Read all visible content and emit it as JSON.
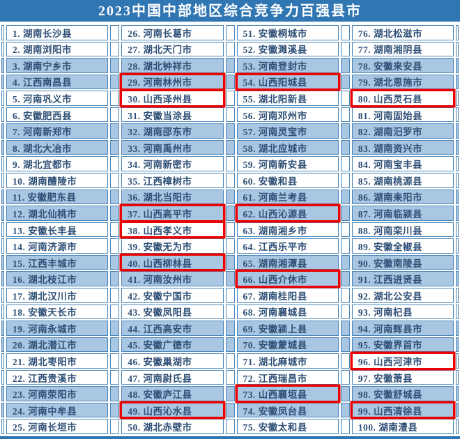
{
  "title": "2023中国中部地区综合竞争力百强县市",
  "colors": {
    "header_bg": "#2f76b3",
    "row_alt": "#a9c6e3",
    "cell_border": "#4a86b8",
    "text": "#2e4f76",
    "highlight_red": "#ea0000"
  },
  "rank_separator": ". ",
  "highlighted_ranks": [
    29,
    30,
    37,
    38,
    40,
    49,
    54,
    62,
    66,
    73,
    80,
    96,
    99
  ],
  "columns": [
    {
      "entries": [
        {
          "rank": 1,
          "name": "湖南长沙县"
        },
        {
          "rank": 2,
          "name": "湖南浏阳市"
        },
        {
          "rank": 3,
          "name": "湖南宁乡市"
        },
        {
          "rank": 4,
          "name": "江西南昌县"
        },
        {
          "rank": 5,
          "name": "河南巩义市"
        },
        {
          "rank": 6,
          "name": "安徽肥西县"
        },
        {
          "rank": 7,
          "name": "河南新郑市"
        },
        {
          "rank": 8,
          "name": "湖北大冶市"
        },
        {
          "rank": 9,
          "name": "湖北宜都市"
        },
        {
          "rank": 10,
          "name": "湖南醴陵市"
        },
        {
          "rank": 11,
          "name": "安徽肥东县"
        },
        {
          "rank": 12,
          "name": "湖北仙桃市"
        },
        {
          "rank": 13,
          "name": "安徽长丰县"
        },
        {
          "rank": 14,
          "name": "河南济源市"
        },
        {
          "rank": 15,
          "name": "江西丰城市"
        },
        {
          "rank": 16,
          "name": "湖北枝江市"
        },
        {
          "rank": 17,
          "name": "湖北汉川市"
        },
        {
          "rank": 18,
          "name": "安徽天长市"
        },
        {
          "rank": 19,
          "name": "河南永城市"
        },
        {
          "rank": 20,
          "name": "湖北潜江市"
        },
        {
          "rank": 21,
          "name": "湖北枣阳市"
        },
        {
          "rank": 22,
          "name": "江西贵溪市"
        },
        {
          "rank": 23,
          "name": "河南荥阳市"
        },
        {
          "rank": 24,
          "name": "河南中牟县"
        },
        {
          "rank": 25,
          "name": "河南长垣市"
        }
      ]
    },
    {
      "entries": [
        {
          "rank": 26,
          "name": "河南长葛市"
        },
        {
          "rank": 27,
          "name": "湖北天门市"
        },
        {
          "rank": 28,
          "name": "湖北钟祥市"
        },
        {
          "rank": 29,
          "name": "河南林州市"
        },
        {
          "rank": 30,
          "name": "山西泽州县"
        },
        {
          "rank": 31,
          "name": "安徽当涂县"
        },
        {
          "rank": 32,
          "name": "湖南邵东市"
        },
        {
          "rank": 33,
          "name": "河南禹州市"
        },
        {
          "rank": 34,
          "name": "河南新密市"
        },
        {
          "rank": 35,
          "name": "江西樟树市"
        },
        {
          "rank": 36,
          "name": "湖北当阳市"
        },
        {
          "rank": 37,
          "name": "山西高平市"
        },
        {
          "rank": 38,
          "name": "山西孝义市"
        },
        {
          "rank": 39,
          "name": "安徽无为市"
        },
        {
          "rank": 40,
          "name": "山西柳林县"
        },
        {
          "rank": 41,
          "name": "河南汝州市"
        },
        {
          "rank": 42,
          "name": "安徽宁国市"
        },
        {
          "rank": 43,
          "name": "安徽凤阳县"
        },
        {
          "rank": 44,
          "name": "江西高安市"
        },
        {
          "rank": 45,
          "name": "安徽广德市"
        },
        {
          "rank": 46,
          "name": "安徽巢湖市"
        },
        {
          "rank": 47,
          "name": "河南尉氏县"
        },
        {
          "rank": 48,
          "name": "安徽庐江县"
        },
        {
          "rank": 49,
          "name": "山西沁水县"
        },
        {
          "rank": 50,
          "name": "湖北赤壁市"
        }
      ]
    },
    {
      "entries": [
        {
          "rank": 51,
          "name": "安徽桐城市"
        },
        {
          "rank": 52,
          "name": "安徽濉溪县"
        },
        {
          "rank": 53,
          "name": "河南登封市"
        },
        {
          "rank": 54,
          "name": "山西阳城县"
        },
        {
          "rank": 55,
          "name": "湖北阳新县"
        },
        {
          "rank": 56,
          "name": "河南邓州市"
        },
        {
          "rank": 57,
          "name": "河南灵宝市"
        },
        {
          "rank": 58,
          "name": "湖北应城市"
        },
        {
          "rank": 59,
          "name": "河南新安县"
        },
        {
          "rank": 60,
          "name": "安徽和县"
        },
        {
          "rank": 61,
          "name": "河南兰考县"
        },
        {
          "rank": 62,
          "name": "山西沁源县"
        },
        {
          "rank": 63,
          "name": "湖南湘乡市"
        },
        {
          "rank": 64,
          "name": "江西乐平市"
        },
        {
          "rank": 65,
          "name": "湖南湘潭县"
        },
        {
          "rank": 66,
          "name": "山西介休市"
        },
        {
          "rank": 67,
          "name": "湖南桂阳县"
        },
        {
          "rank": 68,
          "name": "河南襄城县"
        },
        {
          "rank": 69,
          "name": "安徽颍上县"
        },
        {
          "rank": 70,
          "name": "安徽蒙城县"
        },
        {
          "rank": 71,
          "name": "湖北麻城市"
        },
        {
          "rank": 72,
          "name": "江西瑞昌市"
        },
        {
          "rank": 73,
          "name": "山西襄垣县"
        },
        {
          "rank": 74,
          "name": "安徽凤台县"
        },
        {
          "rank": 75,
          "name": "安徽太和县"
        }
      ]
    },
    {
      "entries": [
        {
          "rank": 76,
          "name": "湖北松滋市"
        },
        {
          "rank": 77,
          "name": "湖南湘阴县"
        },
        {
          "rank": 78,
          "name": "安徽来安县"
        },
        {
          "rank": 79,
          "name": "湖北恩施市"
        },
        {
          "rank": 80,
          "name": "山西灵石县"
        },
        {
          "rank": 81,
          "name": "河南固始县"
        },
        {
          "rank": 82,
          "name": "湖南汨罗市"
        },
        {
          "rank": 83,
          "name": "湖南资兴市"
        },
        {
          "rank": 84,
          "name": "河南宝丰县"
        },
        {
          "rank": 85,
          "name": "湖南桃源县"
        },
        {
          "rank": 86,
          "name": "湖南耒阳市"
        },
        {
          "rank": 87,
          "name": "河南临颍县"
        },
        {
          "rank": 88,
          "name": "河南栾川县"
        },
        {
          "rank": 89,
          "name": "安徽全椒县"
        },
        {
          "rank": 90,
          "name": "安徽南陵县"
        },
        {
          "rank": 91,
          "name": "江西进贤县"
        },
        {
          "rank": 92,
          "name": "湖北公安县"
        },
        {
          "rank": 93,
          "name": "河南杞县"
        },
        {
          "rank": 94,
          "name": "河南辉县市"
        },
        {
          "rank": 95,
          "name": "安徽界首市"
        },
        {
          "rank": 96,
          "name": "山西河津市"
        },
        {
          "rank": 97,
          "name": "安徽萧县"
        },
        {
          "rank": 98,
          "name": "安徽舒城县"
        },
        {
          "rank": 99,
          "name": "山西清徐县"
        },
        {
          "rank": 100,
          "name": "湖南澧县"
        }
      ]
    }
  ]
}
